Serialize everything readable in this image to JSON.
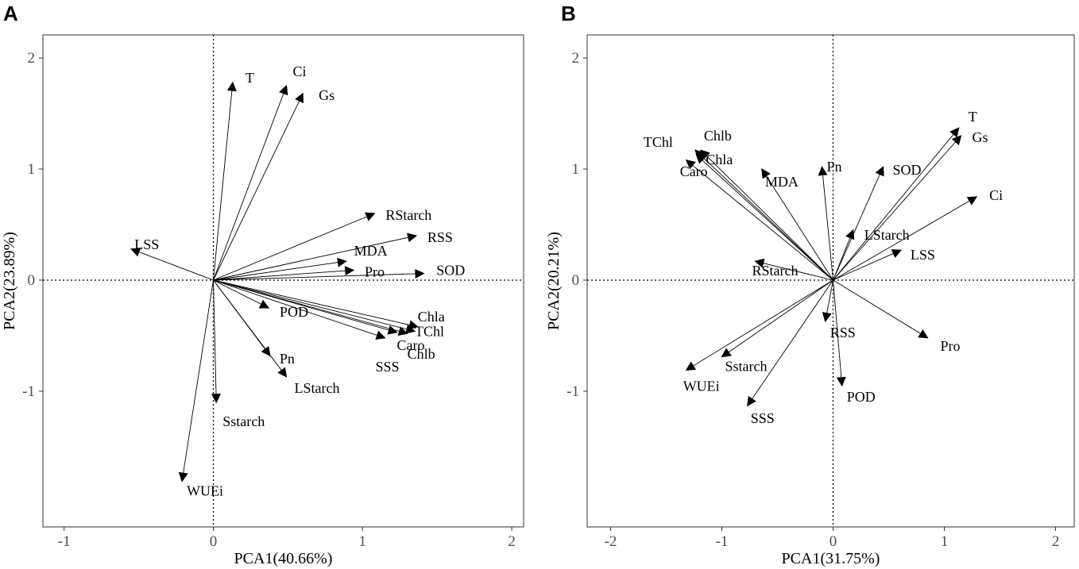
{
  "chart_data": [
    {
      "type": "scatter",
      "subtype": "pca-biplot-loadings",
      "panel_label": "A",
      "xlabel": "PCA1(40.66%)",
      "ylabel": "PCA2(23.89%)",
      "xlim": [
        -1.15,
        2.0
      ],
      "ylim": [
        -2.2,
        2.1
      ],
      "xticks": [
        -1,
        0,
        1,
        2
      ],
      "yticks": [
        -1,
        0,
        1,
        2
      ],
      "xtick_labels": [
        "-1",
        "0",
        "1",
        "2"
      ],
      "ytick_labels": [
        "-1",
        "0",
        "1",
        "2"
      ],
      "reference_lines": {
        "x": 0,
        "y": 0,
        "style": "dotted"
      },
      "vectors": [
        {
          "name": "T",
          "x": 0.13,
          "y": 1.78
        },
        {
          "name": "Ci",
          "x": 0.49,
          "y": 1.75
        },
        {
          "name": "Gs",
          "x": 0.6,
          "y": 1.68
        },
        {
          "name": "RStarch",
          "x": 1.08,
          "y": 0.6
        },
        {
          "name": "RSS",
          "x": 1.36,
          "y": 0.4
        },
        {
          "name": "MDA",
          "x": 0.89,
          "y": 0.17
        },
        {
          "name": "Pro",
          "x": 0.94,
          "y": 0.09
        },
        {
          "name": "SOD",
          "x": 1.41,
          "y": 0.06
        },
        {
          "name": "LSS",
          "x": -0.55,
          "y": 0.28
        },
        {
          "name": "POD",
          "x": 0.37,
          "y": -0.25
        },
        {
          "name": "Chla",
          "x": 1.37,
          "y": -0.42
        },
        {
          "name": "TChl",
          "x": 1.35,
          "y": -0.46
        },
        {
          "name": "Chlb",
          "x": 1.3,
          "y": -0.48
        },
        {
          "name": "Caro",
          "x": 1.23,
          "y": -0.47
        },
        {
          "name": "SSS",
          "x": 1.15,
          "y": -0.52
        },
        {
          "name": "Pn",
          "x": 0.38,
          "y": -0.68
        },
        {
          "name": "LStarch",
          "x": 0.49,
          "y": -0.87
        },
        {
          "name": "Sstarch",
          "x": 0.02,
          "y": -1.1
        },
        {
          "name": "WUEi",
          "x": -0.21,
          "y": -1.81
        }
      ]
    },
    {
      "type": "scatter",
      "subtype": "pca-biplot-loadings",
      "panel_label": "B",
      "xlabel": "PCA1(31.75%)",
      "ylabel": "PCA2(20.21%)",
      "xlim": [
        -2.2,
        2.2
      ],
      "ylim": [
        -2.2,
        2.1
      ],
      "xticks": [
        -2,
        -1,
        0,
        1,
        2
      ],
      "yticks": [
        -1,
        0,
        1,
        2
      ],
      "xtick_labels": [
        "-2",
        "-1",
        "0",
        "1",
        "2"
      ],
      "ytick_labels": [
        "-1",
        "0",
        "1",
        "2"
      ],
      "reference_lines": {
        "x": 0,
        "y": 0,
        "style": "dotted"
      },
      "vectors": [
        {
          "name": "T",
          "x": 1.13,
          "y": 1.37
        },
        {
          "name": "Gs",
          "x": 1.15,
          "y": 1.3
        },
        {
          "name": "Ci",
          "x": 1.29,
          "y": 0.75
        },
        {
          "name": "SOD",
          "x": 0.45,
          "y": 1.02
        },
        {
          "name": "Pn",
          "x": -0.1,
          "y": 1.02
        },
        {
          "name": "MDA",
          "x": -0.64,
          "y": 1.0
        },
        {
          "name": "TChl",
          "x": -1.24,
          "y": 1.17
        },
        {
          "name": "Chlb",
          "x": -1.19,
          "y": 1.17
        },
        {
          "name": "Chla",
          "x": -1.23,
          "y": 1.13
        },
        {
          "name": "Caro",
          "x": -1.32,
          "y": 1.08
        },
        {
          "name": "LStarch",
          "x": 0.18,
          "y": 0.45
        },
        {
          "name": "LSS",
          "x": 0.61,
          "y": 0.27
        },
        {
          "name": "RStarch",
          "x": -0.7,
          "y": 0.17
        },
        {
          "name": "RSS",
          "x": -0.07,
          "y": -0.37
        },
        {
          "name": "Pro",
          "x": 0.85,
          "y": -0.52
        },
        {
          "name": "POD",
          "x": 0.08,
          "y": -0.95
        },
        {
          "name": "Sstarch",
          "x": -1.0,
          "y": -0.69
        },
        {
          "name": "WUEi",
          "x": -1.32,
          "y": -0.81
        },
        {
          "name": "SSS",
          "x": -0.77,
          "y": -1.13
        }
      ]
    }
  ]
}
